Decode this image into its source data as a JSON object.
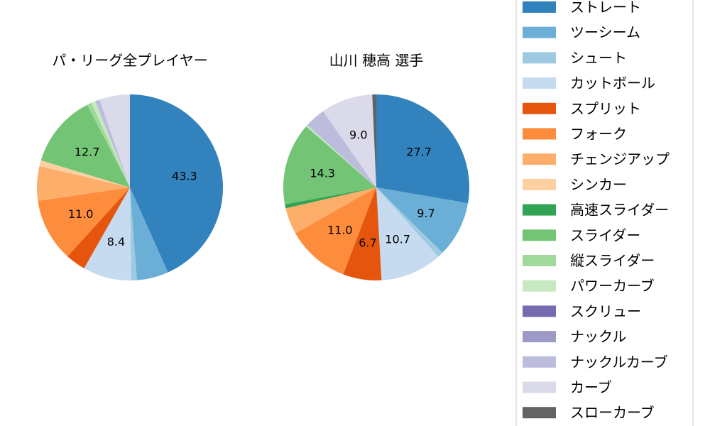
{
  "chart_data": [
    {
      "type": "pie",
      "title": "パ・リーグ全プレイヤー",
      "categories": [
        "ストレート",
        "ツーシーム",
        "シュート",
        "カットボール",
        "スプリット",
        "フォーク",
        "チェンジアップ",
        "シンカー",
        "高速スライダー",
        "スライダー",
        "縦スライダー",
        "パワーカーブ",
        "スクリュー",
        "ナックル",
        "ナックルカーブ",
        "カーブ",
        "スローカーブ"
      ],
      "values": [
        43.3,
        5.5,
        1.0,
        8.4,
        3.5,
        11.0,
        6.0,
        1.0,
        0,
        12.7,
        0.8,
        0.7,
        0,
        0,
        0.8,
        5.3,
        0
      ],
      "data_labels": [
        "43.3",
        "",
        "",
        "8.4",
        "",
        "11.0",
        "",
        "",
        "",
        "12.7",
        "",
        "",
        "",
        "",
        "",
        "",
        ""
      ]
    },
    {
      "type": "pie",
      "title": "山川 穂高  選手",
      "categories": [
        "ストレート",
        "ツーシーム",
        "シュート",
        "カットボール",
        "スプリット",
        "フォーク",
        "チェンジアップ",
        "シンカー",
        "高速スライダー",
        "スライダー",
        "縦スライダー",
        "パワーカーブ",
        "スクリュー",
        "ナックル",
        "ナックルカーブ",
        "カーブ",
        "スローカーブ"
      ],
      "values": [
        27.7,
        9.7,
        1.0,
        10.7,
        6.7,
        11.0,
        4.6,
        0,
        0.7,
        14.3,
        0,
        0.3,
        0,
        0,
        3.6,
        9.0,
        0.7
      ],
      "data_labels": [
        "27.7",
        "9.7",
        "",
        "10.7",
        "6.7",
        "11.0",
        "",
        "",
        "",
        "14.3",
        "",
        "",
        "",
        "",
        "",
        "9.0",
        ""
      ]
    }
  ],
  "legend": {
    "placement": "right",
    "entries": [
      "ストレート",
      "ツーシーム",
      "シュート",
      "カットボール",
      "スプリット",
      "フォーク",
      "チェンジアップ",
      "シンカー",
      "高速スライダー",
      "スライダー",
      "縦スライダー",
      "パワーカーブ",
      "スクリュー",
      "ナックル",
      "ナックルカーブ",
      "カーブ",
      "スローカーブ"
    ],
    "colors": [
      "#3182bd",
      "#6baed6",
      "#9ecae1",
      "#c6dbef",
      "#e6550d",
      "#fd8d3c",
      "#fdae6b",
      "#fdd0a2",
      "#31a354",
      "#74c476",
      "#a1d99b",
      "#c7e9c0",
      "#756bb1",
      "#9e9ac8",
      "#bcbddc",
      "#dadaeb",
      "#636363"
    ]
  }
}
